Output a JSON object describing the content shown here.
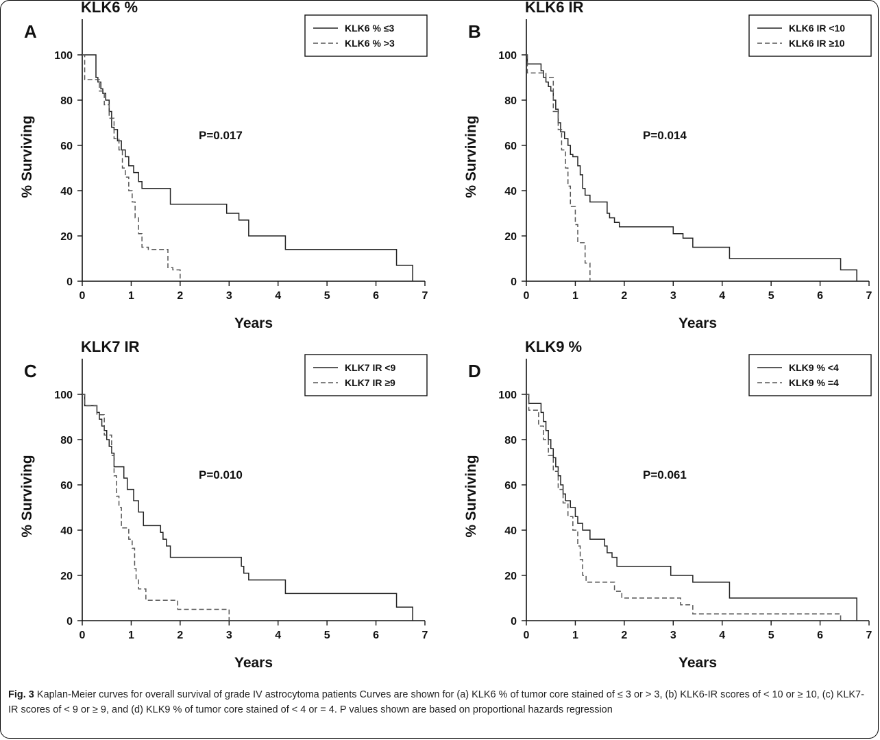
{
  "chart_data": [
    {
      "type": "line",
      "panel_letter": "A",
      "title": "KLK6 %",
      "xlabel": "Years",
      "ylabel": "% Surviving",
      "xlim": [
        0,
        7
      ],
      "ylim": [
        0,
        100
      ],
      "xticks": [
        "0",
        "1",
        "2",
        "3",
        "4",
        "5",
        "6",
        "7"
      ],
      "yticks": [
        "0",
        "20",
        "40",
        "60",
        "80",
        "100"
      ],
      "p_value": "P=0.017",
      "legend_position": "top-right",
      "series": [
        {
          "name": "KLK6 % ≤3",
          "style": "solid",
          "x": [
            0,
            0.28,
            0.32,
            0.38,
            0.42,
            0.48,
            0.55,
            0.6,
            0.65,
            0.72,
            0.8,
            0.88,
            0.95,
            1.05,
            1.15,
            1.22,
            1.8,
            2.95,
            3.2,
            3.4,
            4.15,
            6.42,
            6.75
          ],
          "y": [
            100,
            90,
            88,
            85,
            83,
            80,
            75,
            68,
            67,
            62,
            58,
            55,
            51,
            48,
            44,
            41,
            34,
            30,
            27,
            20,
            14,
            7,
            0
          ]
        },
        {
          "name": "KLK6 % >3",
          "style": "dashed",
          "x": [
            0,
            0.05,
            0.35,
            0.45,
            0.55,
            0.65,
            0.75,
            0.82,
            0.88,
            0.95,
            1.02,
            1.08,
            1.15,
            1.22,
            1.35,
            1.75,
            1.85,
            2.0
          ],
          "y": [
            100,
            89,
            84,
            78,
            72,
            63,
            58,
            50,
            46,
            40,
            35,
            28,
            21,
            15,
            14,
            6,
            5,
            0
          ]
        }
      ]
    },
    {
      "type": "line",
      "panel_letter": "B",
      "title": "KLK6 IR",
      "xlabel": "Years",
      "ylabel": "% Surviving",
      "xlim": [
        0,
        7
      ],
      "ylim": [
        0,
        100
      ],
      "xticks": [
        "0",
        "1",
        "2",
        "3",
        "4",
        "5",
        "6",
        "7"
      ],
      "yticks": [
        "0",
        "20",
        "40",
        "60",
        "80",
        "100"
      ],
      "p_value": "P=0.014",
      "legend_position": "top-right",
      "series": [
        {
          "name": "KLK6 IR <10",
          "style": "solid",
          "x": [
            0,
            0.02,
            0.3,
            0.35,
            0.4,
            0.45,
            0.5,
            0.55,
            0.6,
            0.65,
            0.7,
            0.78,
            0.85,
            0.9,
            0.95,
            1.05,
            1.1,
            1.15,
            1.2,
            1.3,
            1.65,
            1.7,
            1.8,
            1.9,
            3.0,
            3.2,
            3.4,
            4.15,
            6.42,
            6.75
          ],
          "y": [
            100,
            96,
            93,
            90,
            88,
            86,
            84,
            80,
            76,
            70,
            66,
            63,
            60,
            56,
            55,
            51,
            47,
            41,
            38,
            35,
            30,
            28,
            26,
            24,
            21,
            19,
            15,
            10,
            5,
            0
          ]
        },
        {
          "name": "KLK6 IR ≥10",
          "style": "dashed",
          "x": [
            0,
            0.02,
            0.4,
            0.55,
            0.65,
            0.72,
            0.8,
            0.85,
            0.9,
            1.0,
            1.05,
            1.2,
            1.3
          ],
          "y": [
            100,
            92,
            90,
            75,
            67,
            58,
            50,
            42,
            33,
            25,
            17,
            8,
            0
          ]
        }
      ]
    },
    {
      "type": "line",
      "panel_letter": "C",
      "title": "KLK7 IR",
      "xlabel": "Years",
      "ylabel": "% Surviving",
      "xlim": [
        0,
        7
      ],
      "ylim": [
        0,
        100
      ],
      "xticks": [
        "0",
        "1",
        "2",
        "3",
        "4",
        "5",
        "6",
        "7"
      ],
      "yticks": [
        "0",
        "20",
        "40",
        "60",
        "80",
        "100"
      ],
      "p_value": "P=0.010",
      "legend_position": "top-right",
      "series": [
        {
          "name": "KLK7 IR <9",
          "style": "solid",
          "x": [
            0,
            0.05,
            0.3,
            0.35,
            0.4,
            0.45,
            0.5,
            0.55,
            0.6,
            0.65,
            0.85,
            0.92,
            1.05,
            1.15,
            1.25,
            1.6,
            1.65,
            1.72,
            1.8,
            3.25,
            3.3,
            3.4,
            4.15,
            6.42,
            6.75
          ],
          "y": [
            100,
            95,
            92,
            89,
            86,
            84,
            80,
            77,
            74,
            68,
            63,
            58,
            53,
            48,
            42,
            39,
            36,
            33,
            28,
            24,
            21,
            18,
            12,
            6,
            0
          ]
        },
        {
          "name": "KLK7 IR ≥9",
          "style": "dashed",
          "x": [
            0,
            0.05,
            0.3,
            0.45,
            0.6,
            0.65,
            0.7,
            0.75,
            0.8,
            0.95,
            1.02,
            1.07,
            1.1,
            1.15,
            1.3,
            1.95,
            2.95,
            3.0
          ],
          "y": [
            100,
            95,
            91,
            82,
            73,
            64,
            55,
            50,
            41,
            36,
            32,
            23,
            18,
            14,
            9,
            5,
            5,
            0
          ]
        }
      ]
    },
    {
      "type": "line",
      "panel_letter": "D",
      "title": "KLK9 %",
      "xlabel": "Years",
      "ylabel": "% Surviving",
      "xlim": [
        0,
        7
      ],
      "ylim": [
        0,
        100
      ],
      "xticks": [
        "0",
        "1",
        "2",
        "3",
        "4",
        "5",
        "6",
        "7"
      ],
      "yticks": [
        "0",
        "20",
        "40",
        "60",
        "80",
        "100"
      ],
      "p_value": "P=0.061",
      "legend_position": "top-right",
      "series": [
        {
          "name": "KLK9 % <4",
          "style": "solid",
          "x": [
            0,
            0.05,
            0.3,
            0.35,
            0.4,
            0.45,
            0.5,
            0.55,
            0.6,
            0.65,
            0.7,
            0.75,
            0.8,
            0.9,
            1.0,
            1.05,
            1.15,
            1.3,
            1.6,
            1.65,
            1.75,
            1.85,
            2.95,
            3.25,
            3.4,
            4.15,
            6.75
          ],
          "y": [
            100,
            96,
            92,
            88,
            84,
            80,
            76,
            72,
            68,
            64,
            60,
            56,
            53,
            50,
            46,
            43,
            40,
            36,
            33,
            30,
            28,
            24,
            20,
            20,
            17,
            10,
            0
          ]
        },
        {
          "name": "KLK9 % =4",
          "style": "dashed",
          "x": [
            0,
            0.05,
            0.25,
            0.35,
            0.45,
            0.55,
            0.65,
            0.75,
            0.85,
            0.95,
            1.05,
            1.1,
            1.15,
            1.22,
            1.8,
            1.95,
            3.15,
            3.4,
            6.42
          ],
          "y": [
            100,
            93,
            86,
            80,
            73,
            66,
            58,
            52,
            46,
            40,
            33,
            27,
            20,
            17,
            13,
            10,
            7,
            3,
            0
          ]
        }
      ]
    }
  ],
  "caption": {
    "fig_label": "Fig. 3",
    "text": "Kaplan-Meier curves for overall survival of grade IV astrocytoma patients Curves are shown for (a) KLK6 % of tumor core stained of ≤ 3 or > 3, (b) KLK6-IR scores of < 10 or ≥ 10, (c) KLK7-IR scores of < 9 or ≥ 9, and (d) KLK9 % of tumor core stained of < 4 or = 4. P values shown are based on proportional hazards regression"
  }
}
